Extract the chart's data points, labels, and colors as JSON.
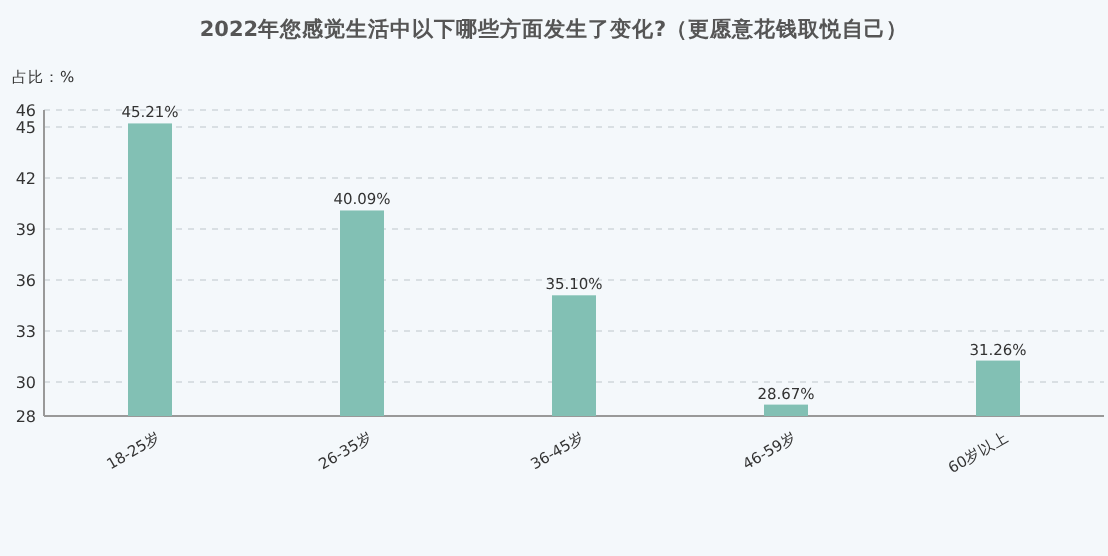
{
  "chart_data": {
    "type": "bar",
    "title": "2022年您感觉生活中以下哪些方面发生了变化?（更愿意花钱取悦自己）",
    "ylabel": "占比：%",
    "categories": [
      "18-25岁",
      "26-35岁",
      "36-45岁",
      "46-59岁",
      "60岁以上"
    ],
    "values": [
      45.21,
      40.09,
      35.1,
      28.67,
      31.26
    ],
    "value_labels": [
      "45.21%",
      "40.09%",
      "35.10%",
      "28.67%",
      "31.26%"
    ],
    "color": "#82c0b4",
    "ylim": [
      28,
      46
    ],
    "yticks": [
      28,
      30,
      33,
      36,
      39,
      42,
      45,
      46
    ],
    "grid": "y"
  }
}
